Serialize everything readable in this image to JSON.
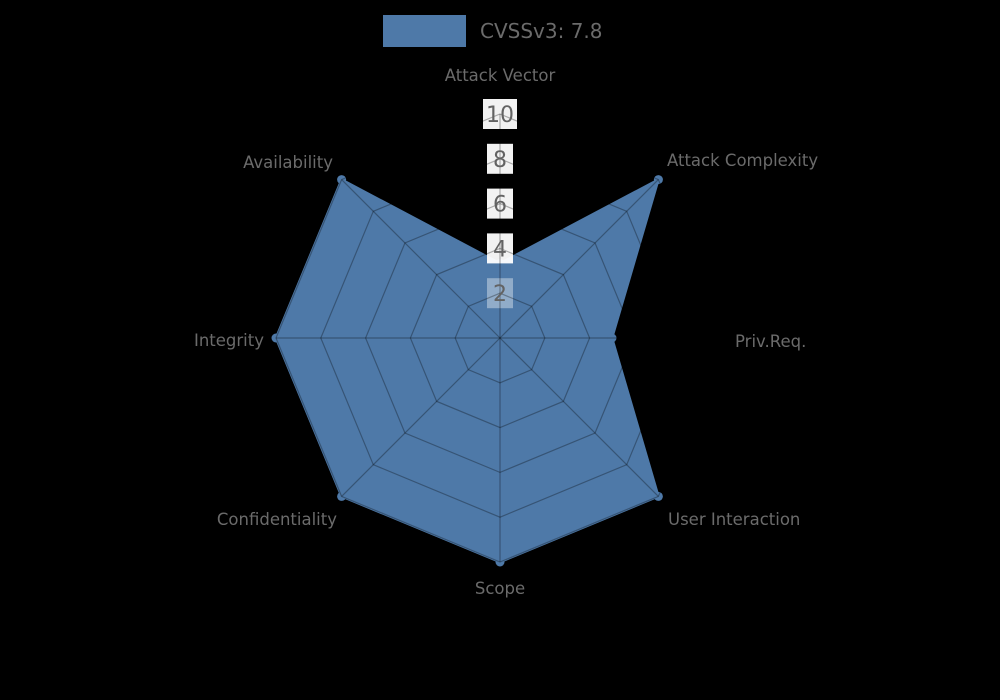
{
  "chart_data": {
    "type": "radar",
    "title": "",
    "legend": {
      "label": "CVSSv3: 7.8",
      "position": "top-center"
    },
    "categories": [
      "Attack Vector",
      "Attack Complexity",
      "Priv.Req.",
      "User Interaction",
      "Scope",
      "Confidentiality",
      "Integrity",
      "Availability"
    ],
    "values": [
      3.33,
      10,
      5,
      10,
      10,
      10,
      10,
      10
    ],
    "radial_ticks": [
      2,
      4,
      6,
      8,
      10
    ],
    "rlim": [
      0,
      10
    ],
    "start_axis": "top",
    "direction": "clockwise",
    "grid": true,
    "colors": {
      "fill": "#4e79a8",
      "marker": "#4e79a8",
      "grid_line": "rgba(0,0,0,0.3)",
      "category_text": "#6b6b6b",
      "tick_text": "#636363",
      "tick_box": "#ffffff",
      "background": "#000000"
    }
  }
}
